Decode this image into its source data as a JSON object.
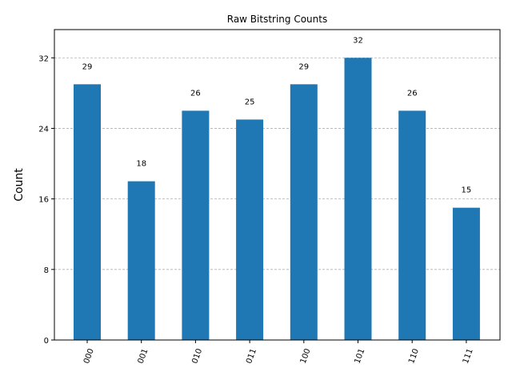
{
  "chart_data": {
    "type": "bar",
    "title": "Raw Bitstring Counts",
    "xlabel": "",
    "ylabel": "Count",
    "categories": [
      "000",
      "001",
      "010",
      "011",
      "100",
      "101",
      "110",
      "111"
    ],
    "values": [
      29,
      18,
      26,
      25,
      29,
      32,
      26,
      15
    ],
    "ylim": [
      0,
      35.2
    ],
    "yticks": [
      0,
      8,
      16,
      24,
      32
    ],
    "grid": true,
    "bar_color": "#1f77b4",
    "grid_color": "#b0b0b0",
    "xtick_rotation": 70
  }
}
